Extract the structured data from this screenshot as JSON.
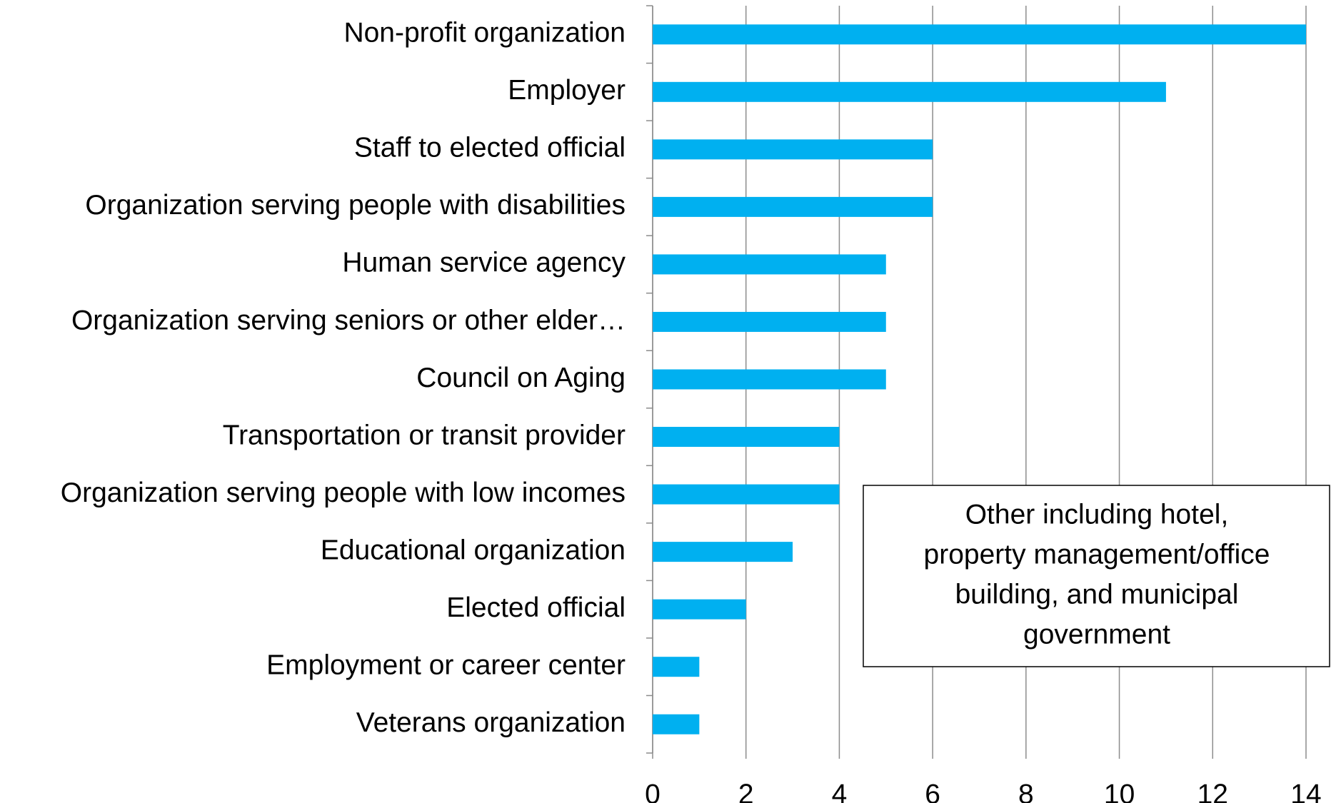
{
  "chart_data": {
    "type": "bar",
    "orientation": "horizontal",
    "categories": [
      "Non-profit organization",
      "Employer",
      "Staff to elected official",
      "Organization serving people with disabilities",
      "Human service agency",
      "Organization serving seniors or other elder…",
      "Council on Aging",
      "Transportation or transit provider",
      "Organization serving people with low incomes",
      "Educational organization",
      "Elected official",
      "Employment or career center",
      "Veterans organization"
    ],
    "values": [
      14,
      11,
      6,
      6,
      5,
      5,
      5,
      4,
      4,
      3,
      2,
      1,
      1
    ],
    "color": "#00b0f0",
    "xlim": [
      0,
      14
    ],
    "xticks": [
      0,
      2,
      4,
      6,
      8,
      10,
      12,
      14
    ],
    "grid": true,
    "annotation": [
      "Other including hotel,",
      "property management/office",
      "building, and municipal",
      "government"
    ]
  }
}
